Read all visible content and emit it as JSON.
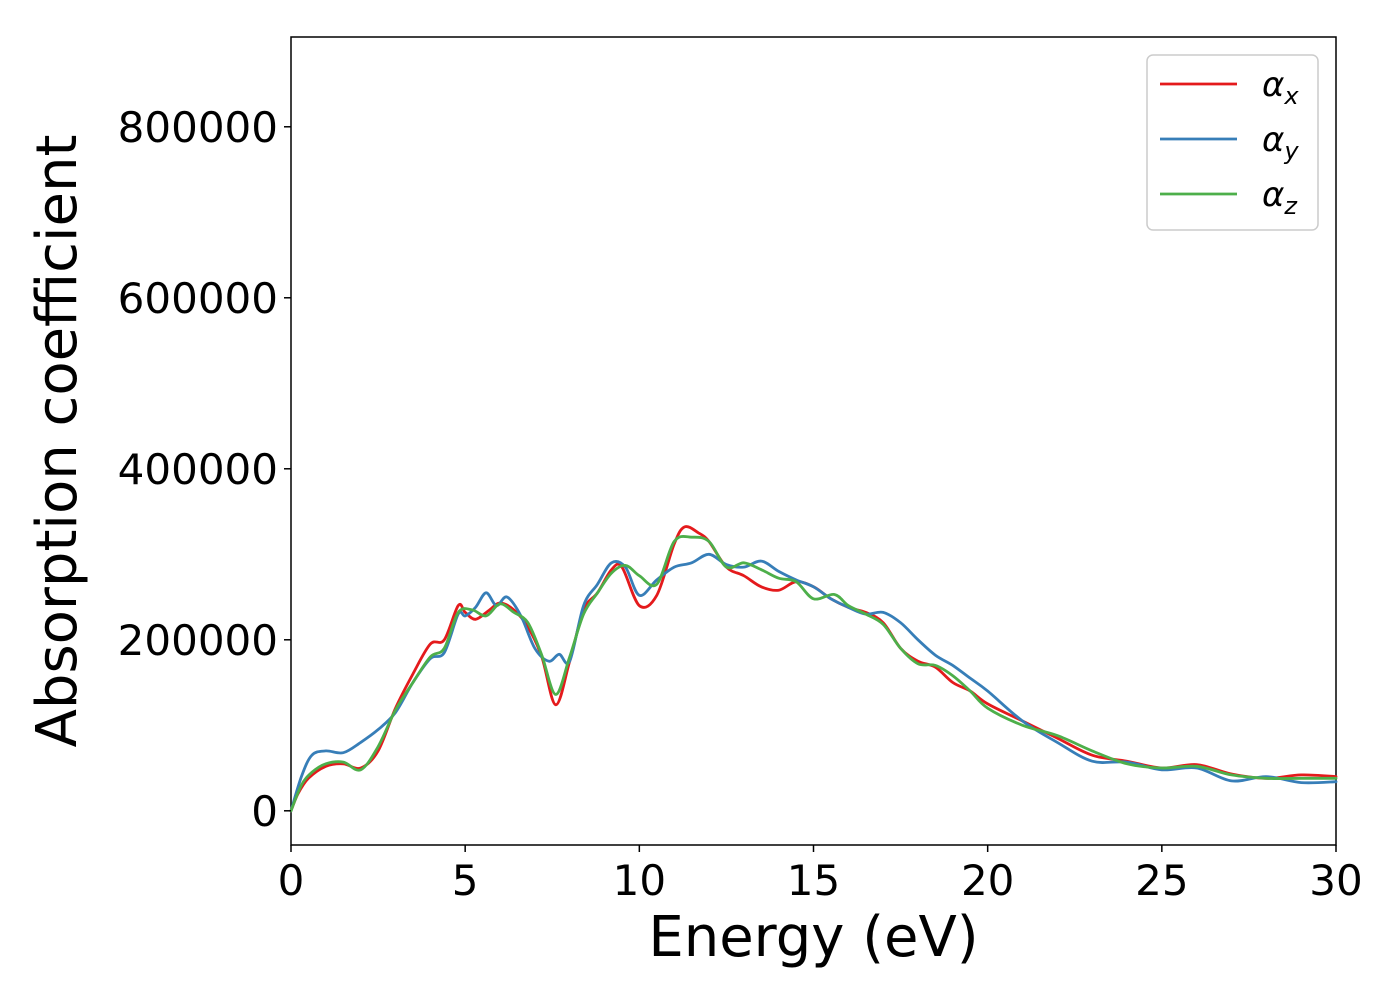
{
  "chart_data": {
    "type": "line",
    "xlabel": "Energy (eV)",
    "ylabel": "Absorption coefficient",
    "xlim": [
      0,
      30
    ],
    "ylim": [
      -40000,
      905000
    ],
    "x_ticks": [
      0,
      5,
      10,
      15,
      20,
      25,
      30
    ],
    "x_tick_labels": [
      "0",
      "5",
      "10",
      "15",
      "20",
      "25",
      "30"
    ],
    "y_ticks": [
      0,
      200000,
      400000,
      600000,
      800000
    ],
    "y_tick_labels": [
      "0",
      "200000",
      "400000",
      "600000",
      "800000"
    ],
    "grid": false,
    "legend_position": "top-right",
    "series": [
      {
        "name": "αx",
        "symbol": "α",
        "subscript": "x",
        "color": "#e41a1c",
        "x": [
          0,
          0.2,
          0.5,
          1.0,
          1.5,
          2.0,
          2.5,
          3.0,
          3.5,
          4.0,
          4.4,
          4.8,
          5.0,
          5.3,
          5.7,
          6.0,
          6.4,
          6.8,
          7.2,
          7.6,
          8.0,
          8.4,
          8.8,
          9.2,
          9.5,
          10.0,
          10.5,
          11.0,
          11.3,
          11.7,
          12.0,
          12.5,
          13.0,
          13.5,
          14.0,
          14.5,
          15.0,
          15.5,
          16.0,
          16.5,
          17.0,
          17.5,
          18.0,
          18.5,
          19.0,
          19.5,
          20.0,
          21.0,
          22.0,
          23.0,
          24.0,
          25.0,
          26.0,
          27.0,
          28.0,
          29.0,
          30.0
        ],
        "y": [
          0,
          20000,
          38000,
          52000,
          55000,
          50000,
          70000,
          120000,
          160000,
          195000,
          200000,
          240000,
          232000,
          224000,
          235000,
          243000,
          235000,
          215000,
          180000,
          124000,
          175000,
          235000,
          255000,
          282000,
          285000,
          240000,
          252000,
          312000,
          332000,
          325000,
          315000,
          285000,
          275000,
          262000,
          258000,
          268000,
          262000,
          248000,
          238000,
          232000,
          220000,
          190000,
          175000,
          168000,
          150000,
          140000,
          125000,
          105000,
          85000,
          65000,
          58000,
          50000,
          54000,
          43000,
          38000,
          42000,
          40000
        ]
      },
      {
        "name": "αy",
        "symbol": "α",
        "subscript": "y",
        "color": "#377eb8",
        "x": [
          0,
          0.3,
          0.6,
          1.0,
          1.5,
          2.0,
          2.5,
          3.0,
          3.5,
          4.0,
          4.4,
          4.8,
          5.0,
          5.3,
          5.6,
          5.9,
          6.2,
          6.6,
          7.0,
          7.4,
          7.7,
          8.0,
          8.4,
          8.8,
          9.2,
          9.6,
          10.0,
          10.5,
          11.0,
          11.5,
          12.0,
          12.5,
          13.0,
          13.5,
          14.0,
          14.5,
          15.0,
          15.5,
          16.0,
          16.5,
          17.0,
          17.5,
          18.0,
          18.5,
          19.0,
          19.5,
          20.0,
          21.0,
          22.0,
          23.0,
          24.0,
          25.0,
          26.0,
          27.0,
          28.0,
          29.0,
          30.0
        ],
        "y": [
          0,
          40000,
          65000,
          70000,
          68000,
          80000,
          95000,
          115000,
          150000,
          178000,
          185000,
          230000,
          228000,
          238000,
          255000,
          240000,
          250000,
          228000,
          190000,
          175000,
          183000,
          175000,
          240000,
          265000,
          290000,
          285000,
          252000,
          270000,
          285000,
          290000,
          300000,
          288000,
          285000,
          292000,
          280000,
          270000,
          262000,
          248000,
          238000,
          230000,
          232000,
          220000,
          200000,
          182000,
          170000,
          155000,
          140000,
          105000,
          80000,
          58000,
          57000,
          48000,
          50000,
          35000,
          40000,
          33000,
          34000
        ]
      },
      {
        "name": "αz",
        "symbol": "α",
        "subscript": "z",
        "color": "#4daf4a",
        "x": [
          0,
          0.3,
          0.6,
          1.0,
          1.5,
          2.0,
          2.5,
          3.0,
          3.5,
          4.0,
          4.4,
          4.8,
          5.2,
          5.6,
          6.0,
          6.4,
          6.8,
          7.2,
          7.6,
          8.0,
          8.4,
          8.8,
          9.2,
          9.6,
          10.0,
          10.5,
          11.0,
          11.5,
          12.0,
          12.5,
          13.0,
          13.5,
          14.0,
          14.5,
          15.0,
          15.6,
          16.0,
          16.5,
          17.0,
          17.5,
          18.0,
          18.5,
          19.0,
          19.5,
          20.0,
          21.0,
          22.0,
          23.0,
          24.0,
          25.0,
          26.0,
          27.0,
          28.0,
          29.0,
          30.0
        ],
        "y": [
          0,
          30000,
          45000,
          55000,
          57000,
          48000,
          75000,
          118000,
          150000,
          180000,
          190000,
          232000,
          235000,
          228000,
          242000,
          232000,
          220000,
          182000,
          136000,
          180000,
          230000,
          255000,
          278000,
          287000,
          275000,
          265000,
          315000,
          320000,
          315000,
          285000,
          290000,
          282000,
          272000,
          268000,
          248000,
          253000,
          240000,
          230000,
          218000,
          190000,
          172000,
          170000,
          158000,
          140000,
          120000,
          100000,
          88000,
          70000,
          55000,
          50000,
          52000,
          42000,
          38000,
          38000,
          38000
        ]
      }
    ]
  }
}
